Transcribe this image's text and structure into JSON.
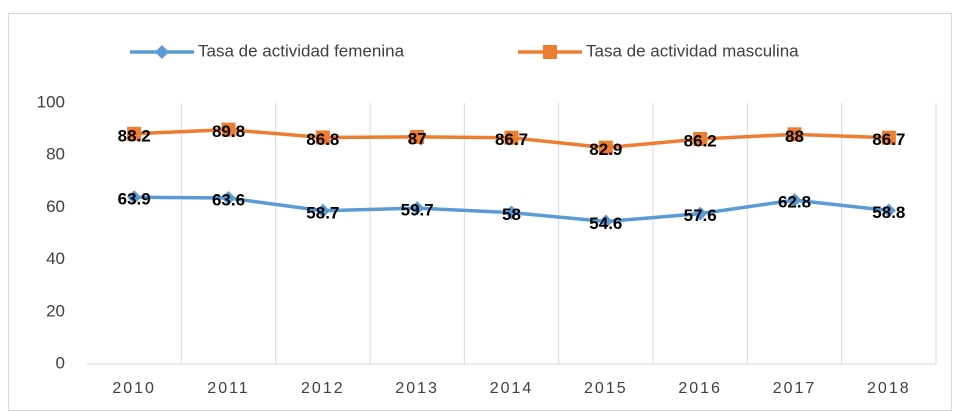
{
  "chart_data": {
    "type": "line",
    "categories": [
      "2010",
      "2011",
      "2012",
      "2013",
      "2014",
      "2015",
      "2016",
      "2017",
      "2018"
    ],
    "series": [
      {
        "name": "Tasa de actividad femenina",
        "color": "#5b9bd5",
        "marker": "diamond",
        "values": [
          63.9,
          63.6,
          58.7,
          59.7,
          58,
          54.6,
          57.6,
          62.8,
          58.8
        ]
      },
      {
        "name": "Tasa de actividad masculina",
        "color": "#ed7d31",
        "marker": "square",
        "values": [
          88.2,
          89.8,
          86.8,
          87,
          86.7,
          82.9,
          86.2,
          88,
          86.7
        ]
      }
    ],
    "ylim": [
      0,
      100
    ],
    "yticks": [
      0,
      20,
      40,
      60,
      80,
      100
    ],
    "legend": "top"
  }
}
